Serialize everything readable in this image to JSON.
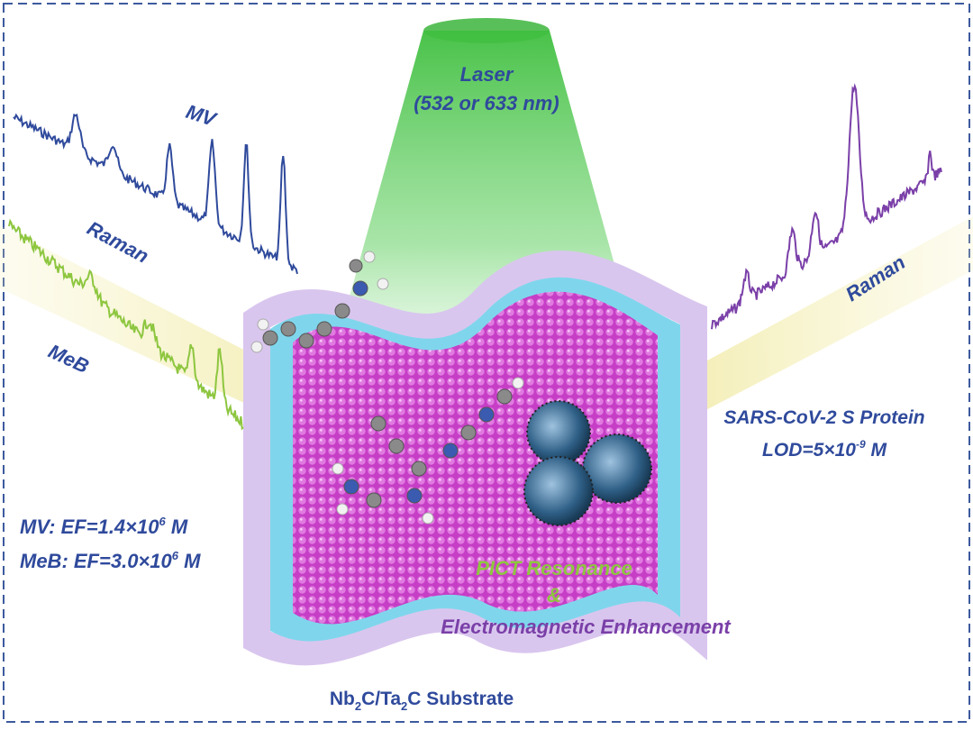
{
  "laser": {
    "label": "Laser",
    "wavelength": "(532 or 633 nm)"
  },
  "left_spectra": {
    "mv_label": "MV",
    "raman_label": "Raman",
    "meb_label": "MeB"
  },
  "enhancement_factors": [
    {
      "prefix": "MV: EF=1.4×10",
      "exponent": "6",
      "suffix": " M"
    },
    {
      "prefix": "MeB: EF=3.0×10",
      "exponent": "6",
      "suffix": " M"
    }
  ],
  "right_spectrum": {
    "raman_label": "Raman",
    "target": "SARS-CoV-2 S Protein",
    "lod_prefix": "LOD=5×10",
    "lod_exponent": "-9",
    "lod_suffix": " M"
  },
  "mechanism": {
    "line1": "PICT Resonance",
    "line2": "&",
    "line3": "Electromagnetic Enhancement"
  },
  "substrate": {
    "part1": "Nb",
    "sub1": "2",
    "part2": "C/Ta",
    "sub2": "2",
    "part3": "C Substrate"
  }
}
